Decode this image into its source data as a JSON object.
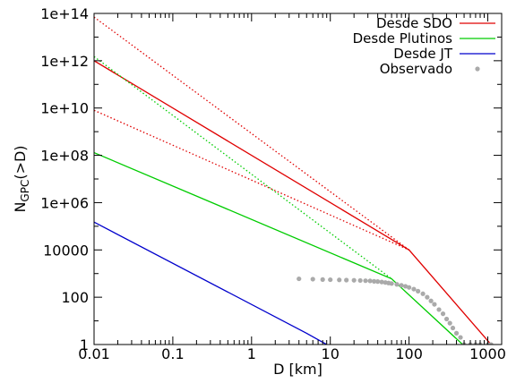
{
  "chart_data": {
    "type": "line",
    "xlabel": "D [km]",
    "ylabel_main": "N",
    "ylabel_sub": "GPC",
    "ylabel_rest": "(>D)",
    "x_scale": "log",
    "y_scale": "log",
    "xlim": [
      0.01,
      1500
    ],
    "ylim": [
      1,
      100000000000000
    ],
    "x_ticks": [
      {
        "value": 0.01,
        "label": "0.01"
      },
      {
        "value": 0.1,
        "label": "0.1"
      },
      {
        "value": 1,
        "label": "1"
      },
      {
        "value": 10,
        "label": "10"
      },
      {
        "value": 100,
        "label": "100"
      },
      {
        "value": 1000,
        "label": "1000"
      }
    ],
    "y_ticks": [
      {
        "value": 1,
        "label": "1"
      },
      {
        "value": 100,
        "label": "100"
      },
      {
        "value": 10000,
        "label": "10000"
      },
      {
        "value": 1000000,
        "label": "1e+06"
      },
      {
        "value": 100000000,
        "label": "1e+08"
      },
      {
        "value": 10000000000,
        "label": "1e+10"
      },
      {
        "value": 1000000000000,
        "label": "1e+12"
      },
      {
        "value": 100000000000000,
        "label": "1e+14"
      }
    ],
    "legend_position": "top-right",
    "colors": {
      "sdo": "#e00000",
      "plutinos": "#00cc00",
      "jt": "#0000cc",
      "observed": "#aaaaaa"
    },
    "series": [
      {
        "name": "Desde SDO",
        "color": "#e00000",
        "style": "solid",
        "in_legend": true,
        "x": [
          0.01,
          100,
          1100
        ],
        "y": [
          1000000000000,
          10000,
          1
        ]
      },
      {
        "name": "",
        "color": "#e00000",
        "style": "dotted",
        "in_legend": false,
        "x": [
          0.01,
          100
        ],
        "y": [
          70000000000000,
          10000
        ]
      },
      {
        "name": "",
        "color": "#e00000",
        "style": "dotted",
        "in_legend": false,
        "x": [
          0.01,
          100
        ],
        "y": [
          8000000000,
          10000
        ]
      },
      {
        "name": "Desde Plutinos",
        "color": "#00cc00",
        "style": "solid",
        "in_legend": true,
        "x": [
          0.01,
          60,
          480
        ],
        "y": [
          130000000,
          600,
          1
        ]
      },
      {
        "name": "",
        "color": "#00cc00",
        "style": "dotted",
        "in_legend": false,
        "x": [
          0.01,
          60
        ],
        "y": [
          1500000000000,
          600
        ]
      },
      {
        "name": "Desde JT",
        "color": "#0000cc",
        "style": "solid",
        "in_legend": true,
        "x": [
          0.01,
          5,
          9
        ],
        "y": [
          150000,
          3,
          1
        ]
      },
      {
        "name": "Observado",
        "color": "#aaaaaa",
        "style": "points",
        "in_legend": true,
        "x": [
          4,
          6,
          8,
          10,
          13,
          16,
          20,
          24,
          28,
          32,
          36,
          40,
          45,
          50,
          55,
          60,
          70,
          80,
          90,
          100,
          115,
          130,
          150,
          170,
          190,
          210,
          240,
          270,
          300,
          330,
          360,
          400,
          450,
          500,
          600,
          700,
          800,
          1000,
          1100
        ],
        "y": [
          600,
          580,
          560,
          550,
          540,
          530,
          520,
          510,
          500,
          490,
          470,
          460,
          440,
          420,
          400,
          380,
          350,
          320,
          290,
          260,
          220,
          180,
          140,
          100,
          70,
          50,
          30,
          20,
          12,
          8,
          5,
          3,
          2,
          1,
          1,
          1,
          1,
          1,
          1
        ]
      }
    ]
  }
}
